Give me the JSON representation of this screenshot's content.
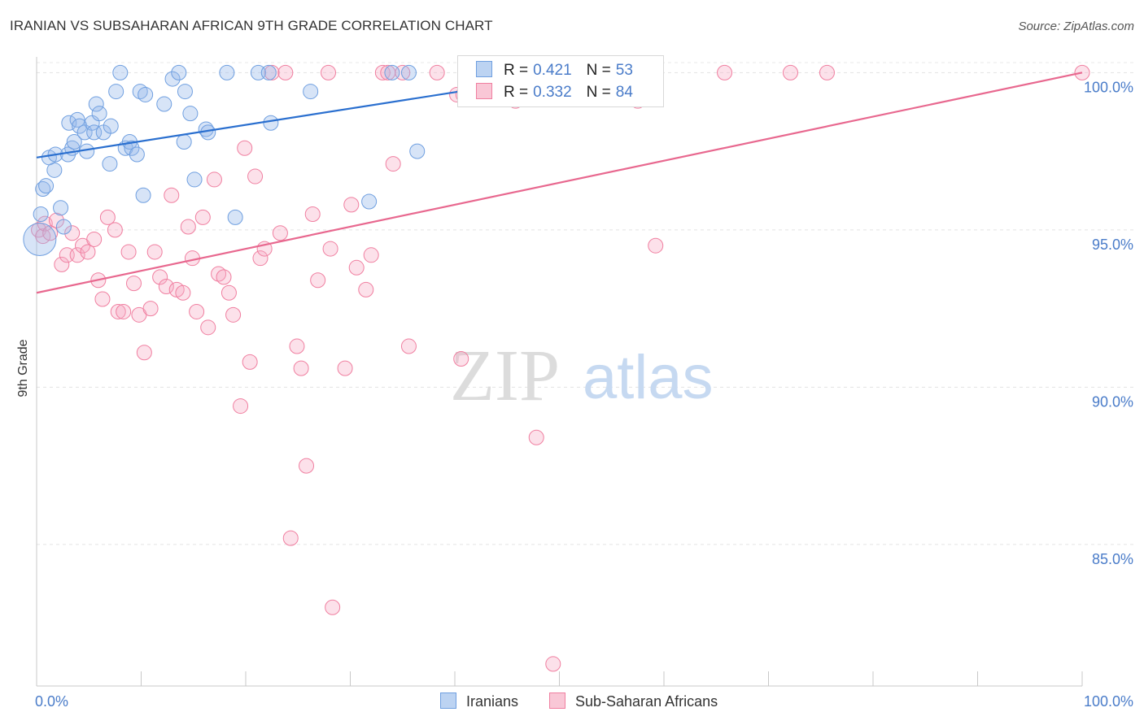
{
  "title": "IRANIAN VS SUBSAHARAN AFRICAN 9TH GRADE CORRELATION CHART",
  "source": "Source: ZipAtlas.com",
  "watermark": {
    "zip": "ZIP",
    "atlas": "atlas"
  },
  "legend": {
    "r_label": "R =",
    "n_label": "N =",
    "rows": [
      {
        "r": "0.421",
        "n": "53"
      },
      {
        "r": "0.332",
        "n": "84"
      }
    ]
  },
  "chart_data": {
    "type": "scatter",
    "title": "IRANIAN VS SUBSAHARAN AFRICAN 9TH GRADE CORRELATION CHART",
    "ylabel": "9th Grade",
    "xlabel": "",
    "xlim": [
      0,
      100
    ],
    "ylim": [
      80.5,
      100.5
    ],
    "x_tick_labels": [
      "0.0%",
      "100.0%"
    ],
    "y_ticks": [
      85,
      90,
      95,
      100
    ],
    "y_tick_labels": [
      "85.0%",
      "90.0%",
      "95.0%",
      "100.0%"
    ],
    "grid": true,
    "legend_position": "top-center",
    "series": [
      {
        "name": "Iranians",
        "color": "#6f9fe0",
        "line_color": "#2a6fcf",
        "r": 0.421,
        "n": 53,
        "trend": {
          "x": [
            0,
            52
          ],
          "y": [
            97.3,
            100.0
          ]
        },
        "points": [
          [
            0.3,
            94.7
          ],
          [
            0.4,
            95.5
          ],
          [
            0.6,
            96.3
          ],
          [
            0.9,
            96.4
          ],
          [
            1.2,
            97.3
          ],
          [
            1.7,
            96.9
          ],
          [
            2.3,
            95.7
          ],
          [
            2.6,
            95.1
          ],
          [
            1.8,
            97.4
          ],
          [
            3.0,
            97.4
          ],
          [
            3.1,
            98.4
          ],
          [
            3.4,
            97.6
          ],
          [
            3.6,
            97.8
          ],
          [
            3.9,
            98.5
          ],
          [
            4.1,
            98.3
          ],
          [
            4.6,
            98.1
          ],
          [
            4.8,
            97.5
          ],
          [
            5.3,
            98.4
          ],
          [
            5.5,
            98.1
          ],
          [
            5.7,
            99.0
          ],
          [
            6.0,
            98.7
          ],
          [
            6.4,
            98.1
          ],
          [
            7.0,
            97.1
          ],
          [
            7.1,
            98.3
          ],
          [
            7.6,
            99.4
          ],
          [
            8.0,
            100.0
          ],
          [
            8.5,
            97.6
          ],
          [
            8.9,
            97.8
          ],
          [
            9.1,
            97.6
          ],
          [
            9.6,
            97.4
          ],
          [
            9.9,
            99.4
          ],
          [
            10.4,
            99.3
          ],
          [
            10.2,
            96.1
          ],
          [
            12.2,
            99.0
          ],
          [
            13.0,
            99.8
          ],
          [
            13.6,
            100.0
          ],
          [
            14.1,
            97.8
          ],
          [
            14.2,
            99.4
          ],
          [
            14.7,
            98.7
          ],
          [
            15.1,
            96.6
          ],
          [
            16.2,
            98.2
          ],
          [
            16.4,
            98.1
          ],
          [
            18.2,
            100.0
          ],
          [
            19.0,
            95.4
          ],
          [
            21.2,
            100.0
          ],
          [
            22.2,
            100.0
          ],
          [
            22.4,
            98.4
          ],
          [
            26.2,
            99.4
          ],
          [
            31.8,
            95.9
          ],
          [
            34.0,
            100.0
          ],
          [
            35.6,
            100.0
          ],
          [
            36.4,
            97.5
          ],
          [
            52.0,
            100.0
          ]
        ]
      },
      {
        "name": "Sub-Saharan Africans",
        "color": "#f07fa0",
        "line_color": "#e8688f",
        "r": 0.332,
        "n": 84,
        "trend": {
          "x": [
            0,
            100
          ],
          "y": [
            93.0,
            100.0
          ]
        },
        "points": [
          [
            0.2,
            95.0
          ],
          [
            0.6,
            94.8
          ],
          [
            0.8,
            95.2
          ],
          [
            1.3,
            94.9
          ],
          [
            1.9,
            95.3
          ],
          [
            2.4,
            93.9
          ],
          [
            2.9,
            94.2
          ],
          [
            3.4,
            94.9
          ],
          [
            3.9,
            94.2
          ],
          [
            4.4,
            94.5
          ],
          [
            4.9,
            94.3
          ],
          [
            5.5,
            94.7
          ],
          [
            5.9,
            93.4
          ],
          [
            6.3,
            92.8
          ],
          [
            6.8,
            95.4
          ],
          [
            7.5,
            95.0
          ],
          [
            7.8,
            92.4
          ],
          [
            8.3,
            92.4
          ],
          [
            8.8,
            94.3
          ],
          [
            9.3,
            93.3
          ],
          [
            9.8,
            92.3
          ],
          [
            10.3,
            91.1
          ],
          [
            10.9,
            92.5
          ],
          [
            11.3,
            94.3
          ],
          [
            11.8,
            93.5
          ],
          [
            12.4,
            93.2
          ],
          [
            12.9,
            96.1
          ],
          [
            13.4,
            93.1
          ],
          [
            14.0,
            93.0
          ],
          [
            14.5,
            95.1
          ],
          [
            14.9,
            94.1
          ],
          [
            15.3,
            92.4
          ],
          [
            15.9,
            95.4
          ],
          [
            16.4,
            91.9
          ],
          [
            17.0,
            96.6
          ],
          [
            17.4,
            93.6
          ],
          [
            17.9,
            93.5
          ],
          [
            18.4,
            93.0
          ],
          [
            18.8,
            92.3
          ],
          [
            19.5,
            89.4
          ],
          [
            19.9,
            97.6
          ],
          [
            20.4,
            90.8
          ],
          [
            20.9,
            96.7
          ],
          [
            21.4,
            94.1
          ],
          [
            21.8,
            94.4
          ],
          [
            22.5,
            100.0
          ],
          [
            23.3,
            94.9
          ],
          [
            23.8,
            100.0
          ],
          [
            24.3,
            85.2
          ],
          [
            24.9,
            91.3
          ],
          [
            25.3,
            90.6
          ],
          [
            25.8,
            87.5
          ],
          [
            26.4,
            95.5
          ],
          [
            26.9,
            93.4
          ],
          [
            27.9,
            100.0
          ],
          [
            28.1,
            94.4
          ],
          [
            28.3,
            83.0
          ],
          [
            29.5,
            90.6
          ],
          [
            30.1,
            95.8
          ],
          [
            30.6,
            93.8
          ],
          [
            31.5,
            93.1
          ],
          [
            32.0,
            94.2
          ],
          [
            33.1,
            100.0
          ],
          [
            33.6,
            100.0
          ],
          [
            34.1,
            97.1
          ],
          [
            35.0,
            100.0
          ],
          [
            35.6,
            91.3
          ],
          [
            38.3,
            100.0
          ],
          [
            40.2,
            99.3
          ],
          [
            40.6,
            90.9
          ],
          [
            40.8,
            99.3
          ],
          [
            45.8,
            99.1
          ],
          [
            47.5,
            100.0
          ],
          [
            47.8,
            88.4
          ],
          [
            49.4,
            81.2
          ],
          [
            51.6,
            99.4
          ],
          [
            52.5,
            99.2
          ],
          [
            55.1,
            100.0
          ],
          [
            57.5,
            99.1
          ],
          [
            59.2,
            94.5
          ],
          [
            65.8,
            100.0
          ],
          [
            72.1,
            100.0
          ],
          [
            75.6,
            100.0
          ],
          [
            100.0,
            100.0
          ]
        ]
      }
    ]
  }
}
